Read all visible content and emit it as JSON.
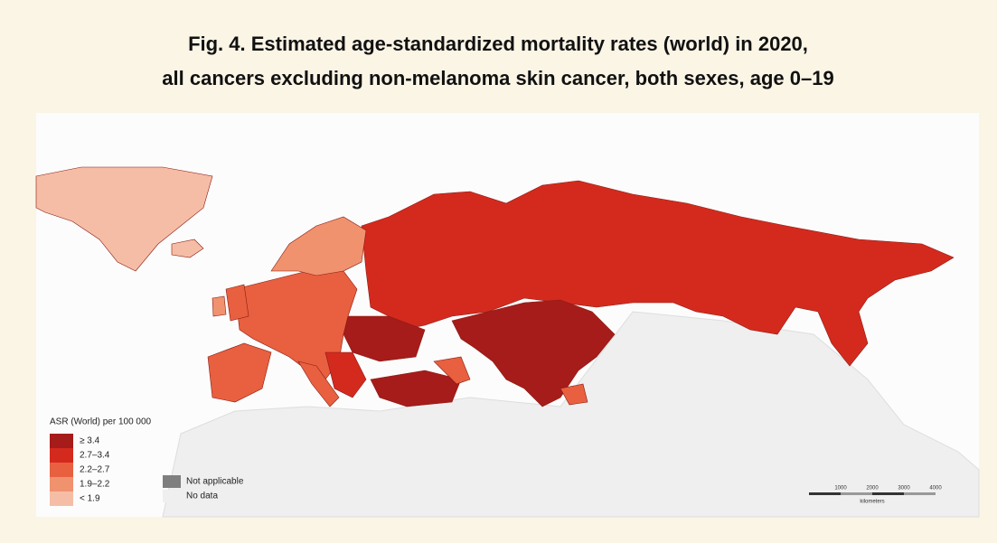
{
  "title": [
    "Fig. 4. Estimated age-standardized mortality rates (world) in 2020,",
    "all cancers excluding non-melanoma skin cancer, both sexes, age 0–19"
  ],
  "legend": {
    "title": "ASR (World) per 100 000",
    "items": [
      {
        "label": "≥ 3.4",
        "color": "#a51c1a"
      },
      {
        "label": "2.7–3.4",
        "color": "#d42a1e"
      },
      {
        "label": "2.2–2.7",
        "color": "#e8603f"
      },
      {
        "label": "1.9–2.2",
        "color": "#f0926e"
      },
      {
        "label": "< 1.9",
        "color": "#f6bda6"
      }
    ],
    "other": [
      {
        "label": "Not applicable",
        "color": "#7f7f7f"
      },
      {
        "label": "No data",
        "color": "#efefef"
      }
    ]
  },
  "scale_bar": {
    "labels": [
      "1000",
      "2000",
      "3000",
      "4000"
    ],
    "unit": "kilometers"
  }
}
